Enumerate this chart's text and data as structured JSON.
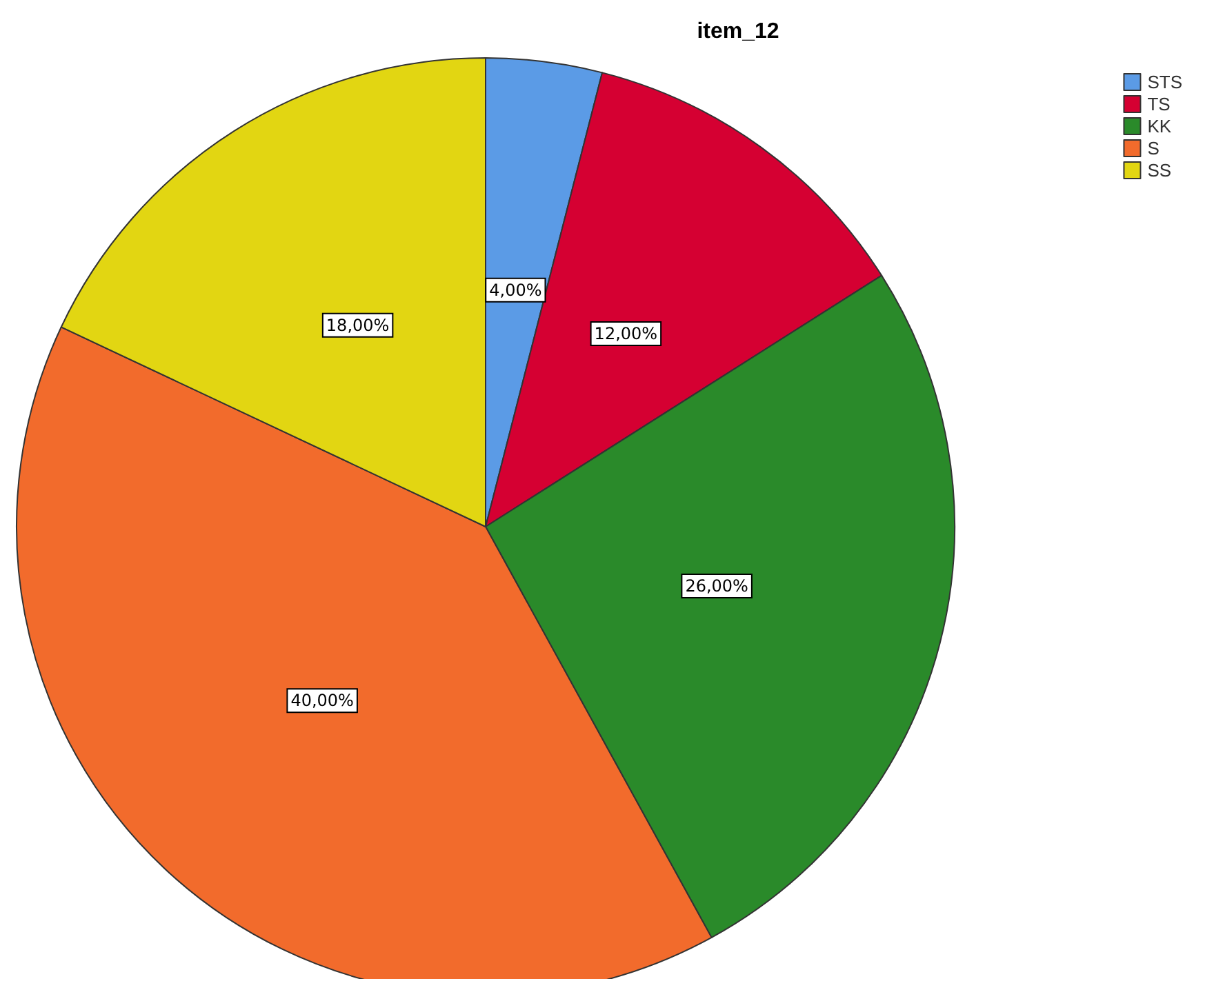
{
  "chart_data": {
    "type": "pie",
    "title": "item_12",
    "categories": [
      "STS",
      "TS",
      "KK",
      "S",
      "SS"
    ],
    "values": [
      4,
      12,
      26,
      40,
      18
    ],
    "colors": [
      "#5b9be6",
      "#d50032",
      "#2a8a2a",
      "#f26b2c",
      "#e2d612"
    ],
    "value_labels": [
      "4,00%",
      "12,00%",
      "26,00%",
      "40,00%",
      "18,00%"
    ],
    "legend": "top right"
  }
}
